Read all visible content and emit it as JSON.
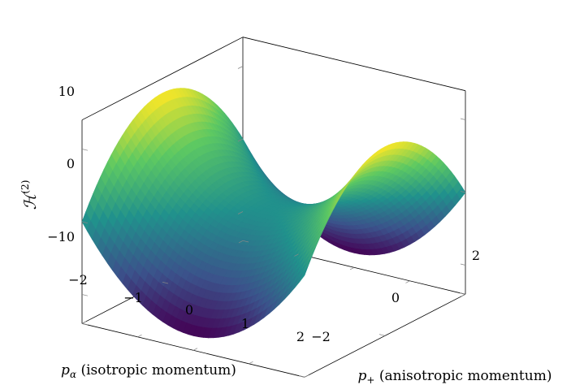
{
  "chart_data": {
    "type": "surface",
    "title": "",
    "xlabel": "p_α (isotropic momentum)",
    "ylabel": "p_+ (anisotropic momentum)",
    "zlabel": "H^(2)",
    "x_ticks": [
      "−2",
      "−1",
      "0",
      "1",
      "2"
    ],
    "y_ticks": [
      "−2",
      "0",
      "2"
    ],
    "z_ticks": [
      "10",
      "0",
      "−10"
    ],
    "xlim": [
      -2,
      2
    ],
    "ylim": [
      -2,
      2
    ],
    "zlim": [
      -14,
      14
    ],
    "surface_function": "z = 3*(x^2 - y^2)",
    "corner_values": [
      {
        "x": -2,
        "y": -2,
        "z": 0
      },
      {
        "x": -2,
        "y": 0,
        "z": 12
      },
      {
        "x": -2,
        "y": 2,
        "z": 0
      },
      {
        "x": 0,
        "y": -2,
        "z": -12
      },
      {
        "x": 0,
        "y": 0,
        "z": 0
      },
      {
        "x": 0,
        "y": 2,
        "z": -12
      },
      {
        "x": 2,
        "y": -2,
        "z": 0
      },
      {
        "x": 2,
        "y": 0,
        "z": 12
      },
      {
        "x": 2,
        "y": 2,
        "z": 0
      }
    ],
    "colormap": "viridis",
    "colormap_stops": [
      "#440154",
      "#3b528b",
      "#21918c",
      "#5ec962",
      "#fde725"
    ]
  }
}
